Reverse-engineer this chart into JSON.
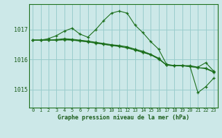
{
  "title": "Graphe pression niveau de la mer (hPa)",
  "bg_color": "#cce8e8",
  "grid_color": "#99cccc",
  "line_color": "#1a6e1a",
  "label_color": "#1a5c1a",
  "ylabel_ticks": [
    1015,
    1016,
    1017
  ],
  "xlim": [
    -0.5,
    23.5
  ],
  "ylim": [
    1014.4,
    1017.85
  ],
  "series": [
    [
      1016.65,
      1016.65,
      1016.7,
      1016.8,
      1016.95,
      1017.05,
      1016.85,
      1016.75,
      1017.0,
      1017.3,
      1017.55,
      1017.62,
      1017.55,
      1017.15,
      1016.9,
      1016.6,
      1016.35,
      1015.85,
      1015.8,
      1015.8,
      1015.8,
      1015.75,
      1015.9,
      1015.62
    ],
    [
      1016.65,
      1016.65,
      1016.65,
      1016.67,
      1016.7,
      1016.68,
      1016.65,
      1016.62,
      1016.58,
      1016.54,
      1016.5,
      1016.47,
      1016.43,
      1016.35,
      1016.28,
      1016.18,
      1016.05,
      1015.82,
      1015.8,
      1015.8,
      1015.78,
      1015.73,
      1015.72,
      1015.6
    ],
    [
      1016.65,
      1016.65,
      1016.65,
      1016.65,
      1016.67,
      1016.66,
      1016.63,
      1016.6,
      1016.56,
      1016.52,
      1016.48,
      1016.45,
      1016.4,
      1016.33,
      1016.25,
      1016.17,
      1016.03,
      1015.82,
      1015.8,
      1015.8,
      1015.77,
      1014.9,
      1015.1,
      1015.38
    ],
    [
      1016.65,
      1016.65,
      1016.65,
      1016.65,
      1016.66,
      1016.65,
      1016.62,
      1016.59,
      1016.55,
      1016.51,
      1016.47,
      1016.44,
      1016.39,
      1016.32,
      1016.24,
      1016.16,
      1016.02,
      1015.82,
      1015.8,
      1015.8,
      1015.77,
      1015.73,
      1015.7,
      1015.58
    ]
  ],
  "xtick_labels": [
    "0",
    "1",
    "2",
    "3",
    "4",
    "5",
    "6",
    "7",
    "8",
    "9",
    "10",
    "11",
    "12",
    "13",
    "14",
    "15",
    "16",
    "17",
    "18",
    "19",
    "20",
    "21",
    "22",
    "23"
  ],
  "marker": "+",
  "markersize": 3.5,
  "linewidth": 0.8
}
